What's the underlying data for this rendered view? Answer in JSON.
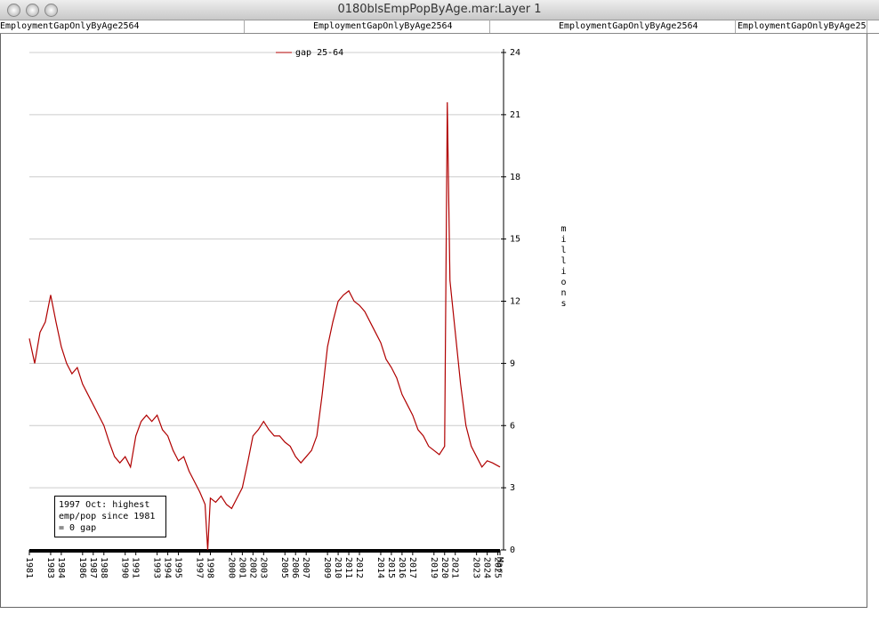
{
  "window": {
    "title": "0180blsEmpPopByAge.mar:Layer 1",
    "tabs": [
      "EmploymentGapOnlyByAge2564",
      "EmploymentGapOnlyByAge2564",
      "EmploymentGapOnlyByAge2564",
      "EmploymentGapOnlyByAge25"
    ]
  },
  "chart_data": {
    "type": "line",
    "y_label": "millions",
    "annotation": [
      "1997 Oct: highest",
      "emp/pop since 1981",
      "= 0 gap"
    ],
    "legend": "top",
    "grid": true,
    "x": [
      1981,
      1981.5,
      1982,
      1982.5,
      1983,
      1983.5,
      1984,
      1984.5,
      1985,
      1985.5,
      1986,
      1986.5,
      1987,
      1987.5,
      1988,
      1988.5,
      1989,
      1989.5,
      1990,
      1990.5,
      1991,
      1991.5,
      1992,
      1992.5,
      1993,
      1993.5,
      1994,
      1994.5,
      1995,
      1995.5,
      1996,
      1996.5,
      1997,
      1997.5,
      1997.75,
      1998,
      1998.5,
      1999,
      1999.5,
      2000,
      2000.5,
      2001,
      2001.5,
      2002,
      2002.5,
      2003,
      2003.5,
      2004,
      2004.5,
      2005,
      2005.5,
      2006,
      2006.5,
      2007,
      2007.5,
      2008,
      2008.5,
      2009,
      2009.5,
      2010,
      2010.5,
      2011,
      2011.5,
      2012,
      2012.5,
      2013,
      2013.5,
      2014,
      2014.5,
      2015,
      2015.5,
      2016,
      2016.5,
      2017,
      2017.5,
      2018,
      2018.5,
      2019,
      2019.5,
      2020,
      2020.25,
      2020.5,
      2021,
      2021.5,
      2022,
      2022.5,
      2023,
      2023.5,
      2024,
      2024.5,
      2025.2
    ],
    "series": [
      {
        "name": "gap 25-64",
        "color": "#b00000",
        "values": [
          10.2,
          9,
          10.5,
          11,
          12.3,
          11,
          9.8,
          9,
          8.5,
          8.8,
          8,
          7.5,
          7,
          6.5,
          6,
          5.2,
          4.5,
          4.2,
          4.5,
          4,
          5.5,
          6.2,
          6.5,
          6.2,
          6.5,
          5.8,
          5.5,
          4.8,
          4.3,
          4.5,
          3.8,
          3.3,
          2.8,
          2.2,
          0,
          2.5,
          2.3,
          2.6,
          2.2,
          2,
          2.5,
          3,
          4.2,
          5.5,
          5.8,
          6.2,
          5.8,
          5.5,
          5.5,
          5.2,
          5,
          4.5,
          4.2,
          4.5,
          4.8,
          5.5,
          7.5,
          9.8,
          11,
          12,
          12.3,
          12.5,
          12,
          11.8,
          11.5,
          11,
          10.5,
          10,
          9.2,
          8.8,
          8.3,
          7.5,
          7,
          6.5,
          5.8,
          5.5,
          5,
          4.8,
          4.6,
          5,
          21.6,
          13,
          10.5,
          8,
          6,
          5,
          4.5,
          4,
          4.3,
          4.2,
          4
        ]
      }
    ],
    "xlim": [
      1981,
      2025.2
    ],
    "xticks": [
      1981,
      1983,
      1984,
      1986,
      1987,
      1988,
      1990,
      1991,
      1993,
      1994,
      1995,
      1997,
      1998,
      2000,
      2001,
      2002,
      2003,
      2005,
      2006,
      2007,
      2009,
      2010,
      2011,
      2012,
      2014,
      2015,
      2016,
      2017,
      2019,
      2020,
      2021,
      2023,
      2024,
      2025,
      {
        "value": 2025.2,
        "label": "Mar"
      }
    ],
    "ylim": [
      0,
      24
    ],
    "yticks": [
      0,
      3,
      6,
      9,
      12,
      15,
      18,
      21,
      24
    ]
  }
}
